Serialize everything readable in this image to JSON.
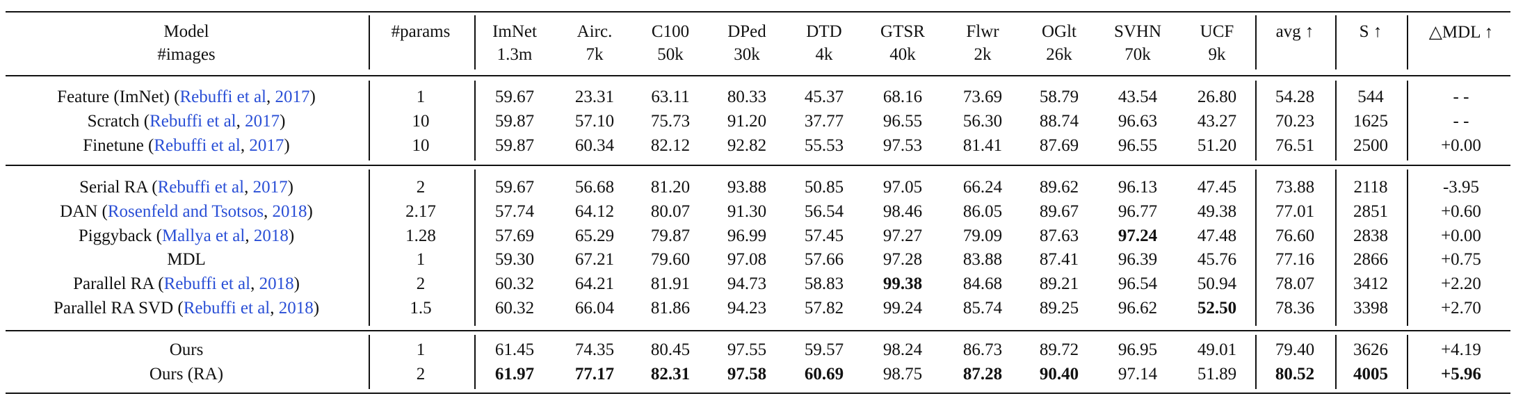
{
  "header": [
    [
      "Model",
      "#images"
    ],
    [
      "#params"
    ],
    [
      "ImNet",
      "1.3m"
    ],
    [
      "Airc.",
      "7k"
    ],
    [
      "C100",
      "50k"
    ],
    [
      "DPed",
      "30k"
    ],
    [
      "DTD",
      "4k"
    ],
    [
      "GTSR",
      "40k"
    ],
    [
      "Flwr",
      "2k"
    ],
    [
      "OGlt",
      "26k"
    ],
    [
      "SVHN",
      "70k"
    ],
    [
      "UCF",
      "9k"
    ],
    [
      "avg ↑"
    ],
    [
      "S ↑"
    ],
    [
      "△MDL ↑"
    ]
  ],
  "groups": [
    {
      "rows": [
        {
          "model": [
            {
              "text": "Feature (ImNet) ("
            },
            {
              "text": "Rebuffi et al",
              "link": true
            },
            {
              "text": ", "
            },
            {
              "text": "2017",
              "link": true
            },
            {
              "text": ")"
            }
          ],
          "cells": [
            "1",
            "59.67",
            "23.31",
            "63.11",
            "80.33",
            "45.37",
            "68.16",
            "73.69",
            "58.79",
            "43.54",
            "26.80",
            "54.28",
            "544",
            "- -"
          ],
          "bold": []
        },
        {
          "model": [
            {
              "text": "Scratch ("
            },
            {
              "text": "Rebuffi et al",
              "link": true
            },
            {
              "text": ", "
            },
            {
              "text": "2017",
              "link": true
            },
            {
              "text": ")"
            }
          ],
          "cells": [
            "10",
            "59.87",
            "57.10",
            "75.73",
            "91.20",
            "37.77",
            "96.55",
            "56.30",
            "88.74",
            "96.63",
            "43.27",
            "70.23",
            "1625",
            "- -"
          ],
          "bold": []
        },
        {
          "model": [
            {
              "text": "Finetune ("
            },
            {
              "text": "Rebuffi et al",
              "link": true
            },
            {
              "text": ", "
            },
            {
              "text": "2017",
              "link": true
            },
            {
              "text": ")"
            }
          ],
          "cells": [
            "10",
            "59.87",
            "60.34",
            "82.12",
            "92.82",
            "55.53",
            "97.53",
            "81.41",
            "87.69",
            "96.55",
            "51.20",
            "76.51",
            "2500",
            "+0.00"
          ],
          "bold": []
        }
      ]
    },
    {
      "rows": [
        {
          "model": [
            {
              "text": "Serial RA ("
            },
            {
              "text": "Rebuffi et al",
              "link": true
            },
            {
              "text": ", "
            },
            {
              "text": "2017",
              "link": true
            },
            {
              "text": ")"
            }
          ],
          "cells": [
            "2",
            "59.67",
            "56.68",
            "81.20",
            "93.88",
            "50.85",
            "97.05",
            "66.24",
            "89.62",
            "96.13",
            "47.45",
            "73.88",
            "2118",
            "-3.95"
          ],
          "bold": []
        },
        {
          "model": [
            {
              "text": "DAN ("
            },
            {
              "text": "Rosenfeld and Tsotsos",
              "link": true
            },
            {
              "text": ", "
            },
            {
              "text": "2018",
              "link": true
            },
            {
              "text": ")"
            }
          ],
          "cells": [
            "2.17",
            "57.74",
            "64.12",
            "80.07",
            "91.30",
            "56.54",
            "98.46",
            "86.05",
            "89.67",
            "96.77",
            "49.38",
            "77.01",
            "2851",
            "+0.60"
          ],
          "bold": []
        },
        {
          "model": [
            {
              "text": "Piggyback ("
            },
            {
              "text": "Mallya et al",
              "link": true
            },
            {
              "text": ", "
            },
            {
              "text": "2018",
              "link": true
            },
            {
              "text": ")"
            }
          ],
          "cells": [
            "1.28",
            "57.69",
            "65.29",
            "79.87",
            "96.99",
            "57.45",
            "97.27",
            "79.09",
            "87.63",
            "97.24",
            "47.48",
            "76.60",
            "2838",
            "+0.00"
          ],
          "bold": [
            9
          ]
        },
        {
          "model": [
            {
              "text": "MDL"
            }
          ],
          "cells": [
            "1",
            "59.30",
            "67.21",
            "79.60",
            "97.08",
            "57.66",
            "97.28",
            "83.88",
            "87.41",
            "96.39",
            "45.76",
            "77.16",
            "2866",
            "+0.75"
          ],
          "bold": []
        },
        {
          "model": [
            {
              "text": "Parallel RA ("
            },
            {
              "text": "Rebuffi et al",
              "link": true
            },
            {
              "text": ", "
            },
            {
              "text": "2018",
              "link": true
            },
            {
              "text": ")"
            }
          ],
          "cells": [
            "2",
            "60.32",
            "64.21",
            "81.91",
            "94.73",
            "58.83",
            "99.38",
            "84.68",
            "89.21",
            "96.54",
            "50.94",
            "78.07",
            "3412",
            "+2.20"
          ],
          "bold": [
            6
          ]
        },
        {
          "model": [
            {
              "text": "Parallel RA SVD ("
            },
            {
              "text": "Rebuffi et al",
              "link": true
            },
            {
              "text": ", "
            },
            {
              "text": "2018",
              "link": true
            },
            {
              "text": ")"
            }
          ],
          "cells": [
            "1.5",
            "60.32",
            "66.04",
            "81.86",
            "94.23",
            "57.82",
            "99.24",
            "85.74",
            "89.25",
            "96.62",
            "52.50",
            "78.36",
            "3398",
            "+2.70"
          ],
          "bold": [
            10
          ]
        }
      ]
    },
    {
      "rows": [
        {
          "model": [
            {
              "text": "Ours"
            }
          ],
          "cells": [
            "1",
            "61.45",
            "74.35",
            "80.45",
            "97.55",
            "59.57",
            "98.24",
            "86.73",
            "89.72",
            "96.95",
            "49.01",
            "79.40",
            "3626",
            "+4.19"
          ],
          "bold": []
        },
        {
          "model": [
            {
              "text": "Ours (RA)"
            }
          ],
          "cells": [
            "2",
            "61.97",
            "77.17",
            "82.31",
            "97.58",
            "60.69",
            "98.75",
            "87.28",
            "90.40",
            "97.14",
            "51.89",
            "80.52",
            "4005",
            "+5.96"
          ],
          "bold": [
            1,
            2,
            3,
            4,
            5,
            7,
            8,
            11,
            12,
            13
          ]
        }
      ]
    }
  ]
}
